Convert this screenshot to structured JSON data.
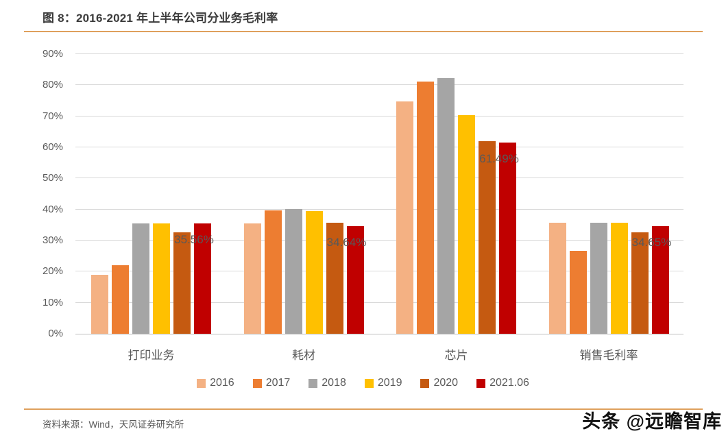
{
  "figure": {
    "title": "图 8：2016-2021 年上半年公司分业务毛利率",
    "source": "资料来源：Wind，天风证券研究所",
    "watermark": "头条 @远瞻智库",
    "accent_color": "#DFA05C"
  },
  "chart_data": {
    "type": "bar",
    "title": "2016-2021 年上半年公司分业务毛利率",
    "categories": [
      "打印业务",
      "耗材",
      "芯片",
      "销售毛利率"
    ],
    "series": [
      {
        "name": "2016",
        "color": "#F4B183",
        "values": [
          19.0,
          35.5,
          74.8,
          35.7
        ]
      },
      {
        "name": "2017",
        "color": "#ED7D31",
        "values": [
          22.0,
          39.6,
          81.2,
          26.8
        ]
      },
      {
        "name": "2018",
        "color": "#A5A5A5",
        "values": [
          35.5,
          40.2,
          82.2,
          35.8
        ]
      },
      {
        "name": "2019",
        "color": "#FFC000",
        "values": [
          35.5,
          39.4,
          70.3,
          35.7
        ]
      },
      {
        "name": "2020",
        "color": "#C55A11",
        "values": [
          32.7,
          35.7,
          62.0,
          32.7
        ]
      },
      {
        "name": "2021.06",
        "color": "#C00000",
        "values": [
          35.56,
          34.64,
          61.49,
          34.65
        ]
      }
    ],
    "data_labels": [
      {
        "category_index": 0,
        "series": "2021.06",
        "text": "35.56%"
      },
      {
        "category_index": 1,
        "series": "2021.06",
        "text": "34.64%"
      },
      {
        "category_index": 2,
        "series": "2021.06",
        "text": "61.49%"
      },
      {
        "category_index": 3,
        "series": "2021.06",
        "text": "34.65%"
      }
    ],
    "y_axis": {
      "min": 0,
      "max": 90,
      "step": 10,
      "tick_labels": [
        "0%",
        "10%",
        "20%",
        "30%",
        "40%",
        "50%",
        "60%",
        "70%",
        "80%",
        "90%"
      ]
    },
    "xlabel": "",
    "ylabel": "",
    "grid": true,
    "legend_position": "bottom"
  }
}
